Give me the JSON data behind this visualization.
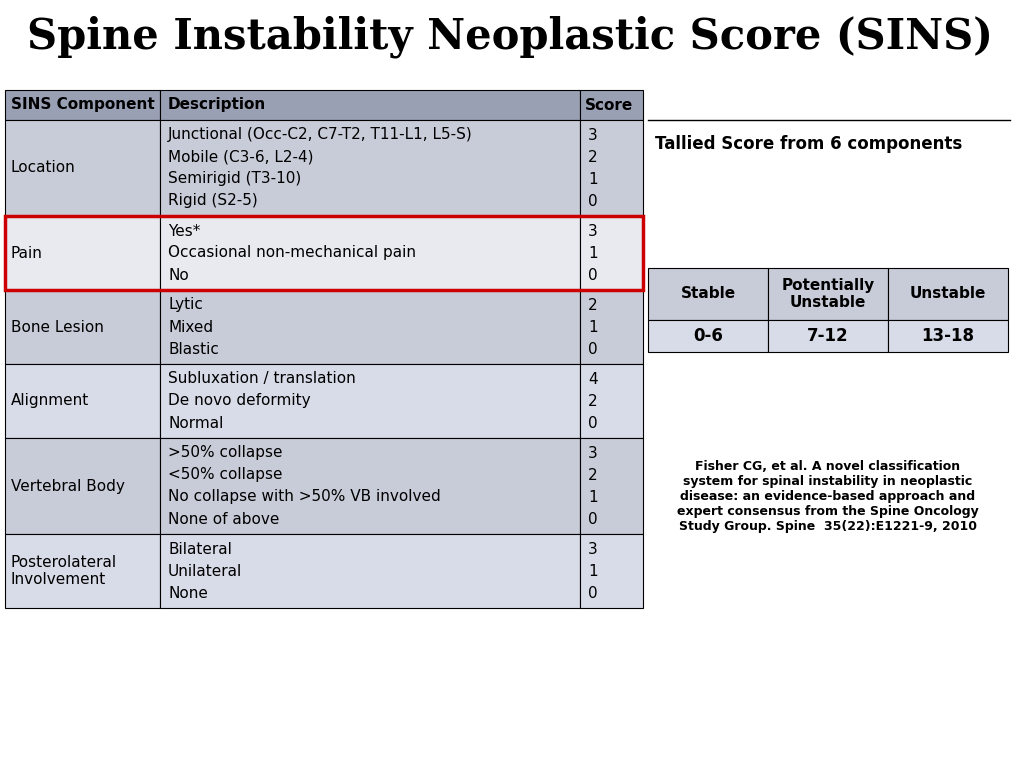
{
  "title": "Spine Instability Neoplastic Score (SINS)",
  "background_color": "#ffffff",
  "table_bg_even": "#c8ccd8",
  "table_bg_odd": "#d8dce8",
  "pain_bg": "#e8eaf0",
  "header_bg": "#9aa0b4",
  "pain_highlight_color": "#cc0000",
  "main_table": {
    "headers": [
      "SINS Component",
      "Description",
      "Score"
    ],
    "rows": [
      {
        "component": "Location",
        "descriptions": [
          "Junctional (Occ-C2, C7-T2, T11-L1, L5-S)",
          "Mobile (C3-6, L2-4)",
          "Semirigid (T3-10)",
          "Rigid (S2-5)"
        ],
        "scores": [
          "3",
          "2",
          "1",
          "0"
        ],
        "highlight": false
      },
      {
        "component": "Pain",
        "descriptions": [
          "Yes*",
          "Occasional non-mechanical pain",
          "No"
        ],
        "scores": [
          "3",
          "1",
          "0"
        ],
        "highlight": true
      },
      {
        "component": "Bone Lesion",
        "descriptions": [
          "Lytic",
          "Mixed",
          "Blastic"
        ],
        "scores": [
          "2",
          "1",
          "0"
        ],
        "highlight": false
      },
      {
        "component": "Alignment",
        "descriptions": [
          "Subluxation / translation",
          "De novo deformity",
          "Normal"
        ],
        "scores": [
          "4",
          "2",
          "0"
        ],
        "highlight": false
      },
      {
        "component": "Vertebral Body",
        "descriptions": [
          ">50% collapse",
          "<50% collapse",
          "No collapse with >50% VB involved",
          "None of above"
        ],
        "scores": [
          "3",
          "2",
          "1",
          "0"
        ],
        "highlight": false
      },
      {
        "component": "Posterolateral\nInvolvement",
        "descriptions": [
          "Bilateral",
          "Unilateral",
          "None"
        ],
        "scores": [
          "3",
          "1",
          "0"
        ],
        "highlight": false
      }
    ]
  },
  "score_table": {
    "title": "Tallied Score from 6 components",
    "headers": [
      "Stable",
      "Potentially\nUnstable",
      "Unstable"
    ],
    "values": [
      "0-6",
      "7-12",
      "13-18"
    ]
  },
  "citation": "Fisher CG, et al. A novel classification\nsystem for spinal instability in neoplastic\ndisease: an evidence-based approach and\nexpert consensus from the Spine Oncology\nStudy Group. Spine  35(22):E1221-9, 2010"
}
